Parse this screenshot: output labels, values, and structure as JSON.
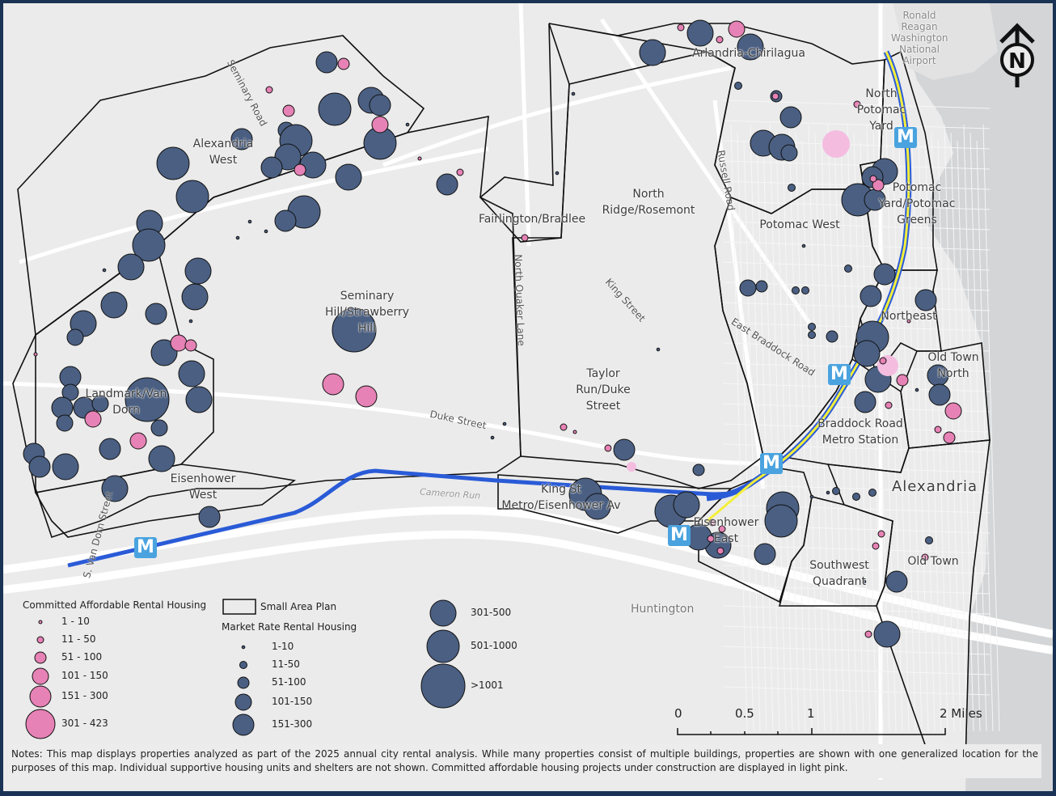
{
  "map": {
    "area_labels": [
      {
        "id": "alexandria-west",
        "text": "Alexandria\nWest"
      },
      {
        "id": "arlandria",
        "text": "Arlandria-Chirilagua"
      },
      {
        "id": "north-potomac-yard",
        "text": "North\nPotomac\nYard"
      },
      {
        "id": "potomac-yard",
        "text": "Potomac\nYard/Potomac\nGreens"
      },
      {
        "id": "north-ridge",
        "text": "North\nRidge/Rosemont"
      },
      {
        "id": "potomac-west",
        "text": "Potomac West"
      },
      {
        "id": "fairlington",
        "text": "Fairlington/Bradlee"
      },
      {
        "id": "seminary-hill",
        "text": "Seminary\nHill/Strawberry\nHill"
      },
      {
        "id": "landmark",
        "text": "Landmark/Van\nDorn"
      },
      {
        "id": "eisenhower-west",
        "text": "Eisenhower\nWest"
      },
      {
        "id": "taylor-run",
        "text": "Taylor\nRun/Duke\nStreet"
      },
      {
        "id": "northeast",
        "text": "Northeast"
      },
      {
        "id": "old-town-north",
        "text": "Old Town\nNorth"
      },
      {
        "id": "braddock",
        "text": "Braddock Road\nMetro Station"
      },
      {
        "id": "king-st",
        "text": "King St\nMetro/Eisenhower Av"
      },
      {
        "id": "eisenhower-east",
        "text": "Eisenhower\nEast"
      },
      {
        "id": "southwest-quadrant",
        "text": "Southwest\nQuadrant"
      },
      {
        "id": "old-town",
        "text": "Old Town"
      },
      {
        "id": "alexandria",
        "text": "Alexandria"
      }
    ],
    "place_labels": {
      "huntington": "Huntington",
      "airport": "Ronald\nReagan\nWashington\nNational\nAirport",
      "cameron_run": "Cameron Run"
    },
    "road_labels": {
      "seminary": "Seminary Road",
      "quaker": "North Quaker Lane",
      "king": "King Street",
      "russell": "Russell Road",
      "braddock": "East Braddock Road",
      "duke": "Duke Street",
      "van_dorn": "S. Van Dorn Street"
    },
    "metro_symbol": "M",
    "north_arrow": "N",
    "colors": {
      "market": "#4a5f82",
      "affordable": "#e682b5",
      "under_construction": "#f4bde0",
      "background": "#ebebeb",
      "water": "#d3d5d7",
      "blue_line": "#2a5bd7",
      "yellow_line": "#f4ef3a"
    }
  },
  "legend": {
    "affordable_title": "Committed Affordable Rental Housing",
    "affordable": [
      "1 - 10",
      "11 - 50",
      "51 - 100",
      "101 - 150",
      "151 - 300",
      "301 - 423"
    ],
    "small_area_plan": "Small Area Plan",
    "market_title": "Market Rate Rental Housing",
    "market": [
      "1-10",
      "11-50",
      "51-100",
      "101-150",
      "151-300",
      "301-500",
      "501-1000",
      ">1001"
    ]
  },
  "scale_bar": {
    "ticks": [
      "0",
      "0.5",
      "1",
      "2 Miles"
    ]
  },
  "notes": "Notes: This map displays properties analyzed as part of the 2025 annual city rental analysis. While many properties consist of multiple buildings, properties are shown with one generalized location for the purposes of this map. Individual supportive housing units and shelters are not shown. Committed affordable housing projects under construction are displayed in light pink."
}
